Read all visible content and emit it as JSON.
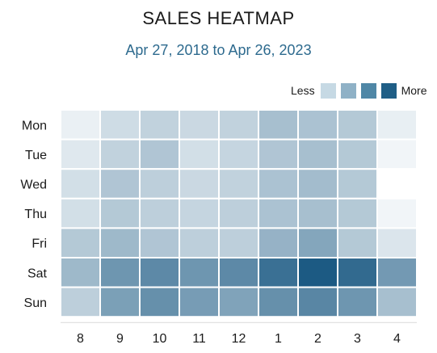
{
  "chart_data": {
    "type": "heatmap",
    "title": "SALES HEATMAP",
    "subtitle": "Apr 27, 2018 to Apr 26, 2023",
    "x_labels": [
      "8",
      "9",
      "10",
      "11",
      "12",
      "1",
      "2",
      "3",
      "4"
    ],
    "y_labels": [
      "Mon",
      "Tue",
      "Wed",
      "Thu",
      "Fri",
      "Sat",
      "Sun"
    ],
    "values": [
      [
        0.05,
        0.18,
        0.24,
        0.2,
        0.24,
        0.36,
        0.34,
        0.3,
        0.06
      ],
      [
        0.1,
        0.24,
        0.32,
        0.16,
        0.22,
        0.32,
        0.36,
        0.3,
        0.02
      ],
      [
        0.16,
        0.32,
        0.26,
        0.2,
        0.24,
        0.34,
        0.38,
        0.3,
        0.0
      ],
      [
        0.16,
        0.3,
        0.26,
        0.22,
        0.26,
        0.34,
        0.36,
        0.3,
        0.02
      ],
      [
        0.3,
        0.4,
        0.32,
        0.26,
        0.26,
        0.44,
        0.52,
        0.3,
        0.12
      ],
      [
        0.4,
        0.62,
        0.7,
        0.62,
        0.7,
        0.86,
        1.0,
        0.9,
        0.6
      ],
      [
        0.26,
        0.56,
        0.66,
        0.58,
        0.54,
        0.66,
        0.72,
        0.62,
        0.36
      ]
    ],
    "legend": {
      "less_label": "Less",
      "more_label": "More",
      "colors": [
        "#c6d9e4",
        "#8fb1c6",
        "#4f87a6",
        "#1f5e86"
      ]
    },
    "color_low": "#f5f8fa",
    "color_high": "#1c5a83",
    "grid": false
  }
}
